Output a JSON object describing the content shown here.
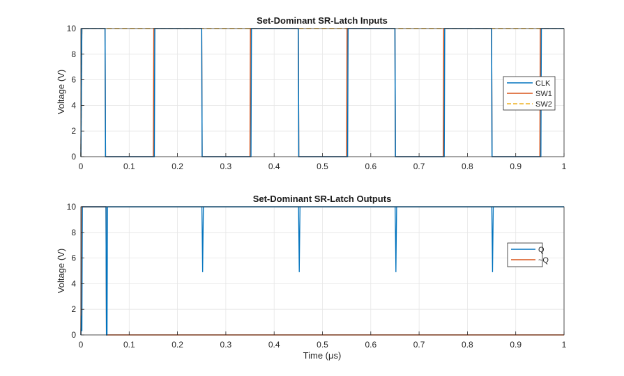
{
  "chart_data": [
    {
      "type": "line",
      "title": "Set-Dominant SR-Latch Inputs",
      "xlabel": "",
      "ylabel": "Voltage (V)",
      "xlim": [
        0,
        1
      ],
      "ylim": [
        0,
        10
      ],
      "xticks": [
        "0",
        "0.1",
        "0.2",
        "0.3",
        "0.4",
        "0.5",
        "0.6",
        "0.7",
        "0.8",
        "0.9",
        "1"
      ],
      "yticks": [
        "0",
        "2",
        "4",
        "6",
        "8",
        "10"
      ],
      "grid": true,
      "legend_position": "right",
      "series": [
        {
          "name": "CLK",
          "color": "#0072BD",
          "style": "solid",
          "x": [
            0,
            0.002,
            0.05,
            0.051,
            0.152,
            0.153,
            0.25,
            0.251,
            0.352,
            0.353,
            0.45,
            0.451,
            0.552,
            0.553,
            0.65,
            0.651,
            0.752,
            0.753,
            0.85,
            0.851,
            0.952,
            0.953,
            1.0
          ],
          "y": [
            0,
            10,
            10,
            0,
            0,
            10,
            10,
            0,
            0,
            10,
            10,
            0,
            0,
            10,
            10,
            0,
            0,
            10,
            10,
            0,
            0,
            10,
            10
          ]
        },
        {
          "name": "SW1",
          "color": "#D95319",
          "style": "solid",
          "x": [
            0,
            0.002,
            0.05,
            0.051,
            0.15,
            0.151,
            0.25,
            0.251,
            0.35,
            0.351,
            0.45,
            0.451,
            0.55,
            0.551,
            0.65,
            0.651,
            0.75,
            0.751,
            0.85,
            0.851,
            0.95,
            0.951,
            1.0
          ],
          "y": [
            0,
            10,
            10,
            0,
            0,
            10,
            10,
            0,
            0,
            10,
            10,
            0,
            0,
            10,
            10,
            0,
            0,
            10,
            10,
            0,
            0,
            10,
            10
          ]
        },
        {
          "name": "SW2",
          "color": "#EDB120",
          "style": "dashed",
          "x": [
            0,
            0.002,
            1.0
          ],
          "y": [
            0,
            10,
            10
          ]
        }
      ]
    },
    {
      "type": "line",
      "title": "Set-Dominant SR-Latch Outputs",
      "xlabel": "Time  (μs)",
      "ylabel": "Voltage (V)",
      "xlim": [
        0,
        1
      ],
      "ylim": [
        0,
        10
      ],
      "xticks": [
        "0",
        "0.1",
        "0.2",
        "0.3",
        "0.4",
        "0.5",
        "0.6",
        "0.7",
        "0.8",
        "0.9",
        "1"
      ],
      "yticks": [
        "0",
        "2",
        "4",
        "6",
        "8",
        "10"
      ],
      "grid": true,
      "legend_position": "right",
      "series": [
        {
          "name": "Q",
          "color": "#0072BD",
          "style": "solid",
          "x": [
            0,
            0.001,
            0.002,
            0.003,
            0.052,
            0.053,
            0.054,
            0.055,
            1.0
          ],
          "y": [
            0,
            1.5,
            0.3,
            10,
            10,
            0,
            0,
            10,
            10
          ],
          "dips": [
            {
              "x": 0.252,
              "y": 4.9
            },
            {
              "x": 0.452,
              "y": 4.9
            },
            {
              "x": 0.652,
              "y": 4.9
            },
            {
              "x": 0.852,
              "y": 4.9
            }
          ]
        },
        {
          "name": "~Q",
          "color": "#D95319",
          "style": "solid",
          "x": [
            0,
            0.002,
            0.052,
            0.053,
            1.0
          ],
          "y": [
            0,
            10,
            10,
            0,
            0
          ]
        }
      ]
    }
  ]
}
